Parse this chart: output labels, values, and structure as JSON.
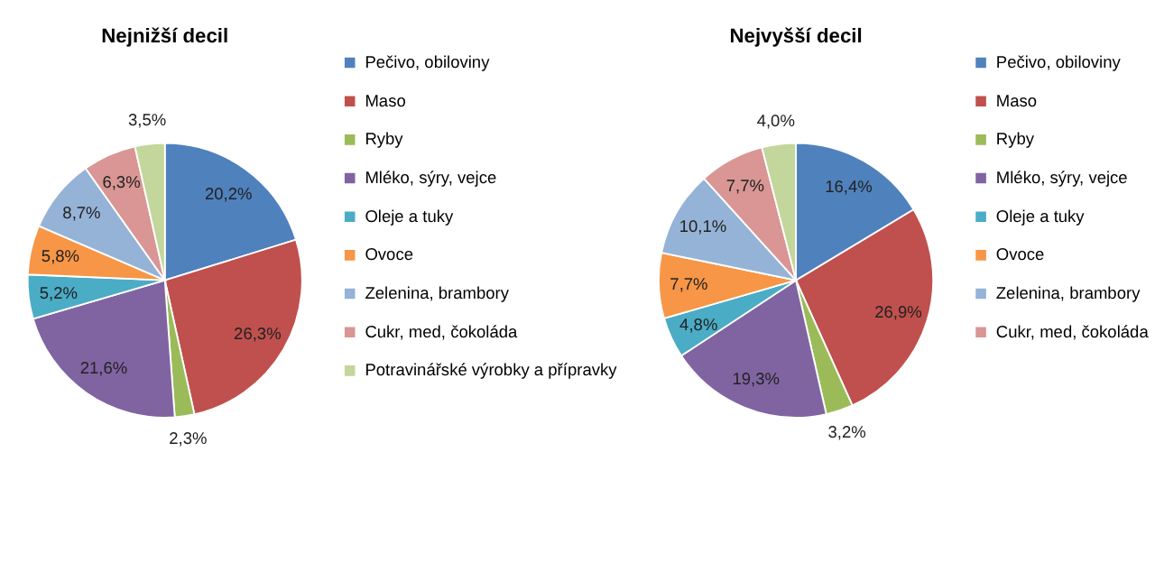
{
  "chart_data": [
    {
      "type": "pie",
      "title": "Nejnižší decil",
      "legend": "right",
      "categories": [
        "Pečivo, obiloviny",
        "Maso",
        "Ryby",
        "Mléko, sýry, vejce",
        "Oleje a tuky",
        "Ovoce",
        "Zelenina, brambory",
        "Cukr, med, čokoláda",
        "Potravinářské výrobky a přípravky"
      ],
      "values": [
        20.2,
        26.3,
        2.3,
        21.6,
        5.2,
        5.8,
        8.7,
        6.3,
        3.5
      ],
      "value_labels": [
        "20,2%",
        "26,3%",
        "2,3%",
        "21,6%",
        "5,2%",
        "5,8%",
        "8,7%",
        "6,3%",
        "3,5%"
      ],
      "colors": [
        "#4f81bd",
        "#c0504d",
        "#9bbb59",
        "#8064a2",
        "#4bacc6",
        "#f79646",
        "#95b3d7",
        "#d99694",
        "#c3d69b"
      ]
    },
    {
      "type": "pie",
      "title": "Nejvyšší decil",
      "legend": "right",
      "categories": [
        "Pečivo, obiloviny",
        "Maso",
        "Ryby",
        "Mléko, sýry, vejce",
        "Oleje a tuky",
        "Ovoce",
        "Zelenina, brambory",
        "Cukr, med, čokoláda",
        null
      ],
      "values": [
        16.4,
        26.9,
        3.2,
        19.3,
        4.8,
        7.7,
        10.1,
        7.7,
        4.0
      ],
      "value_labels": [
        "16,4%",
        "26,9%",
        "3,2%",
        "19,3%",
        "4,8%",
        "7,7%",
        "10,1%",
        "7,7%",
        "4,0%"
      ],
      "colors": [
        "#4f81bd",
        "#c0504d",
        "#9bbb59",
        "#8064a2",
        "#4bacc6",
        "#f79646",
        "#95b3d7",
        "#d99694",
        "#c3d69b"
      ]
    }
  ]
}
